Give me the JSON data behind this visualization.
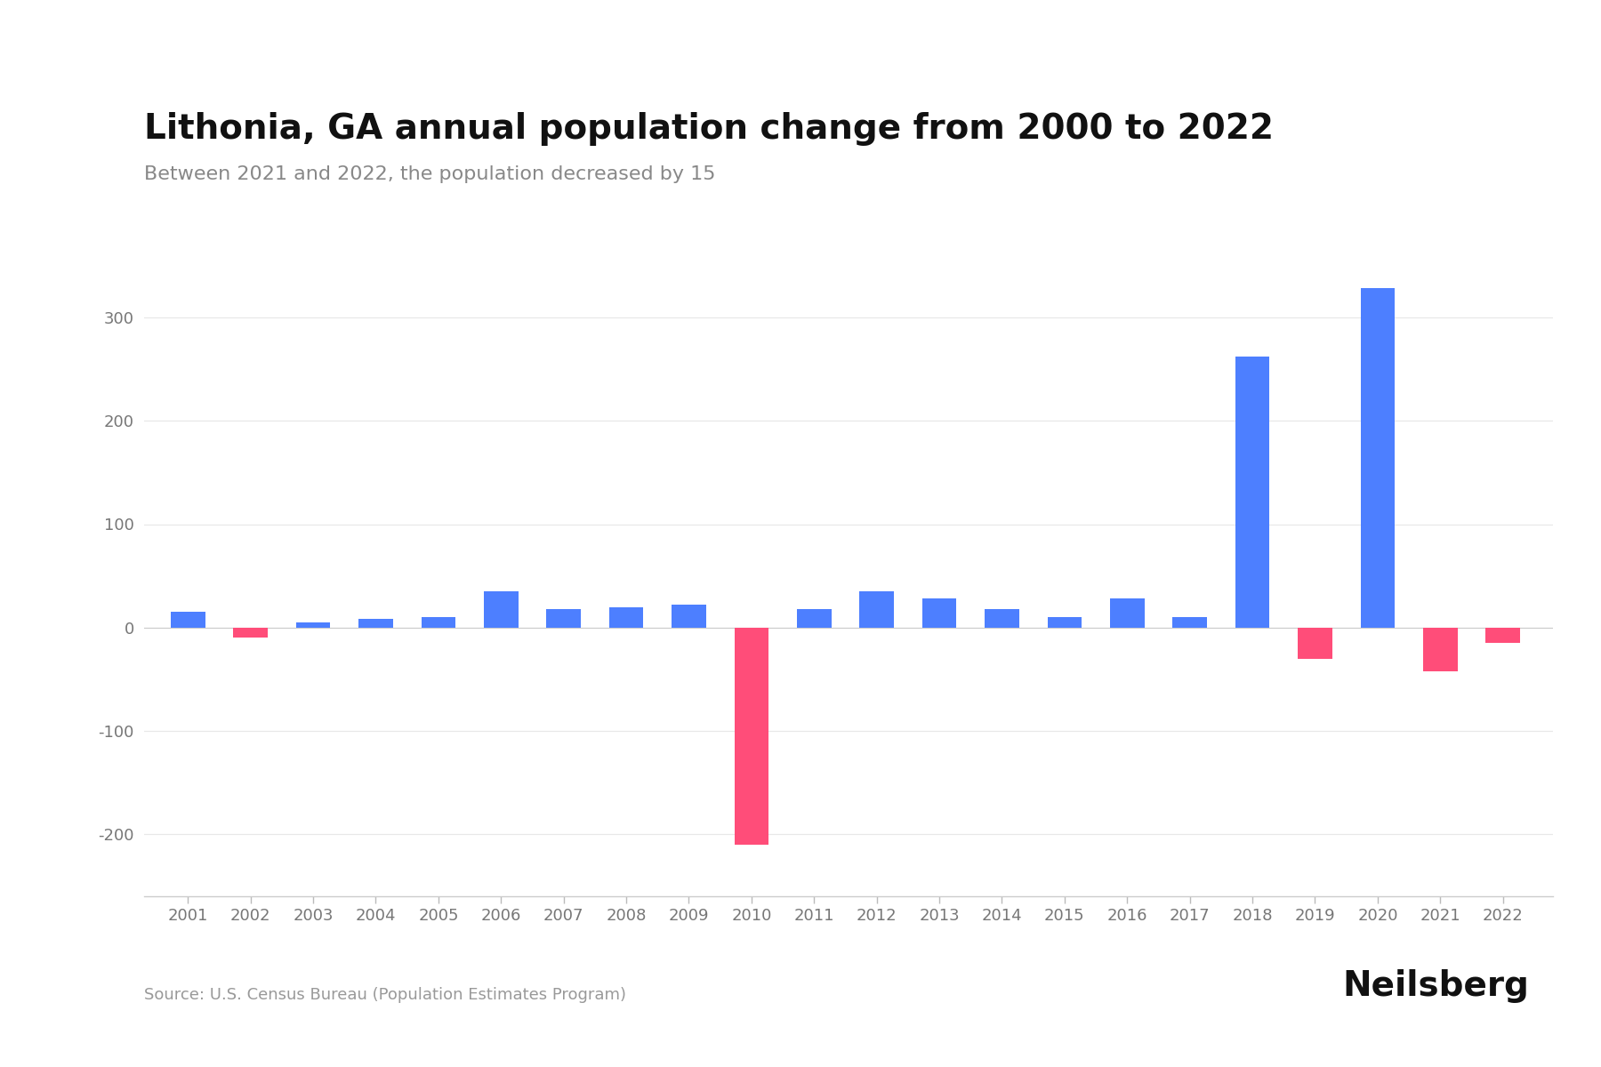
{
  "title": "Lithonia, GA annual population change from 2000 to 2022",
  "subtitle": "Between 2021 and 2022, the population decreased by 15",
  "source": "Source: U.S. Census Bureau (Population Estimates Program)",
  "branding": "Neilsberg",
  "years": [
    2001,
    2002,
    2003,
    2004,
    2005,
    2006,
    2007,
    2008,
    2009,
    2010,
    2011,
    2012,
    2013,
    2014,
    2015,
    2016,
    2017,
    2018,
    2019,
    2020,
    2021,
    2022
  ],
  "values": [
    15,
    -10,
    5,
    8,
    10,
    35,
    18,
    20,
    22,
    -210,
    18,
    35,
    28,
    18,
    10,
    28,
    10,
    262,
    -30,
    328,
    -42,
    -15
  ],
  "background_color": "#ffffff",
  "positive_color": "#4d7fff",
  "negative_color": "#ff4d79",
  "title_fontsize": 28,
  "subtitle_fontsize": 16,
  "source_fontsize": 13,
  "branding_fontsize": 28,
  "ylim": [
    -260,
    380
  ],
  "yticks": [
    -200,
    -100,
    0,
    100,
    200,
    300
  ],
  "grid_color": "#e8e8e8",
  "bar_width": 0.55
}
